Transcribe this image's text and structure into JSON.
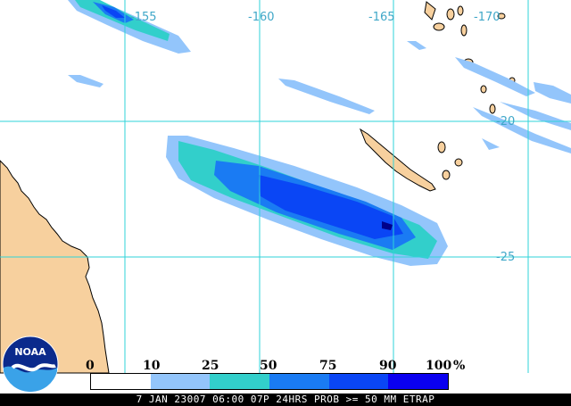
{
  "map": {
    "lon_labels": [
      "-155",
      "-160",
      "-165",
      "-170"
    ],
    "lat_labels": [
      "-20",
      "-25"
    ],
    "land_color": "#f7d09e",
    "coast_color": "#000000",
    "grid_color": "#2fd3d8"
  },
  "legend": {
    "ticks": [
      "0",
      "10",
      "25",
      "50",
      "75",
      "90",
      "100"
    ],
    "unit": "%",
    "colors": [
      "#ffffff",
      "#93c5fb",
      "#32cfcb",
      "#1a7bf3",
      "#0a46f5",
      "#0a00f0",
      "#00008a"
    ]
  },
  "caption": "7 JAN 23007 06:00 07P 24HRS PROB >= 50 MM ETRAP",
  "logo": {
    "text": "NOAA"
  }
}
